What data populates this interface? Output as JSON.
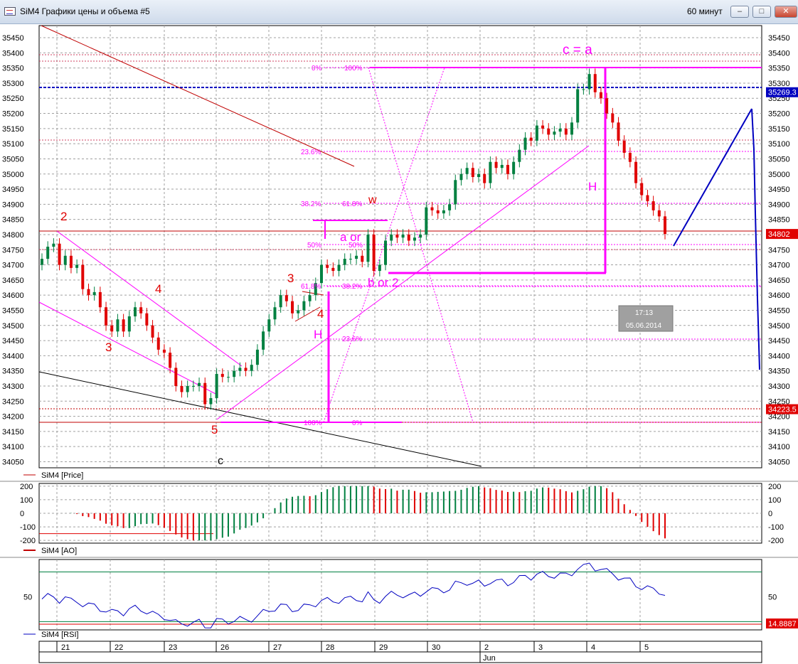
{
  "window": {
    "title": "SiM4 Графики цены и объема #5",
    "timeframe": "60 минут",
    "buttons": [
      "minimize",
      "maximize",
      "close"
    ]
  },
  "colors": {
    "bull": "#008040",
    "bear": "#e00000",
    "magenta": "#ff00ff",
    "blue": "#0000c0",
    "grid": "#a0a0a0"
  },
  "chart_data": [
    {
      "type": "candlestick",
      "series": [
        {
          "name": "SiM4 [Price]"
        }
      ],
      "ylim": [
        34030,
        35490
      ],
      "y_ticks": [
        34050,
        34100,
        34150,
        34200,
        34250,
        34300,
        34350,
        34400,
        34450,
        34500,
        34550,
        34600,
        34650,
        34700,
        34750,
        34800,
        34850,
        34900,
        34950,
        35000,
        35050,
        35100,
        35150,
        35200,
        35250,
        35300,
        35350,
        35400,
        35450
      ],
      "price_markers": [
        {
          "label": "35269.3",
          "value": 35270,
          "color": "#0000c0"
        },
        {
          "label": "34802",
          "value": 34802,
          "color": "#e00000"
        },
        {
          "label": "34223.5",
          "value": 34223.5,
          "color": "#e00000"
        }
      ],
      "closes": [
        34720,
        34760,
        34770,
        34700,
        34730,
        34690,
        34700,
        34620,
        34600,
        34610,
        34560,
        34500,
        34480,
        34520,
        34480,
        34530,
        34560,
        34540,
        34500,
        34460,
        34420,
        34410,
        34360,
        34300,
        34280,
        34300,
        34300,
        34310,
        34240,
        34260,
        34340,
        34330,
        34330,
        34350,
        34360,
        34350,
        34370,
        34420,
        34480,
        34520,
        34560,
        34600,
        34580,
        34540,
        34550,
        34580,
        34600,
        34640,
        34700,
        34690,
        34680,
        34700,
        34720,
        34720,
        34730,
        34710,
        34800,
        34680,
        34700,
        34780,
        34800,
        34790,
        34800,
        34780,
        34790,
        34800,
        34890,
        34880,
        34870,
        34880,
        34900,
        34980,
        35000,
        35020,
        34990,
        35000,
        34970,
        35040,
        35020,
        35030,
        35000,
        35040,
        35080,
        35120,
        35110,
        35160,
        35150,
        35130,
        35140,
        35150,
        35130,
        35170,
        35280,
        35280,
        35330,
        35270,
        35250,
        35200,
        35170,
        35110,
        35070,
        35040,
        34970,
        34930,
        34910,
        34880,
        34860,
        34802
      ],
      "annotations": [
        {
          "text": "2",
          "color": "#e00000"
        },
        {
          "text": "3",
          "color": "#e00000"
        },
        {
          "text": "4",
          "color": "#e00000"
        },
        {
          "text": "5",
          "color": "#e00000"
        },
        {
          "text": "c",
          "color": "#000000"
        },
        {
          "text": "3",
          "color": "#e00000"
        },
        {
          "text": "4",
          "color": "#e00000"
        },
        {
          "text": "H",
          "color": "#ff00ff"
        },
        {
          "text": "a or",
          "color": "#ff00ff"
        },
        {
          "text": "b or 2",
          "color": "#ff00ff"
        },
        {
          "text": "w",
          "color": "#e00000"
        },
        {
          "text": "H",
          "color": "#ff00ff"
        },
        {
          "text": "c  = a",
          "color": "#ff00ff"
        }
      ],
      "fib_labels": {
        "left": [
          "100%",
          "61.8%",
          "50%",
          "38.2%",
          "23.6%",
          "0%"
        ],
        "right": [
          "0%",
          "23.6%",
          "38.2%",
          "50%",
          "61.8%",
          "100%"
        ]
      },
      "tooltip": {
        "time": "17:13",
        "date": "05.06.2014"
      }
    },
    {
      "type": "bar",
      "series": [
        {
          "name": "SiM4 [AO]"
        }
      ],
      "ylim": [
        -220,
        220
      ],
      "y_ticks": [
        200,
        100,
        0,
        -100,
        -200
      ]
    },
    {
      "type": "line",
      "series": [
        {
          "name": "SiM4 [RSI]"
        }
      ],
      "ylim": [
        10,
        95
      ],
      "y_ticks": [
        50
      ],
      "levels": [
        80,
        20
      ],
      "last_value": "14.8887"
    }
  ],
  "x_axis": {
    "day_labels": [
      "21",
      "22",
      "23",
      "26",
      "27",
      "28",
      "29",
      "30",
      "2",
      "3",
      "4",
      "5"
    ],
    "month_label": "Jun"
  }
}
